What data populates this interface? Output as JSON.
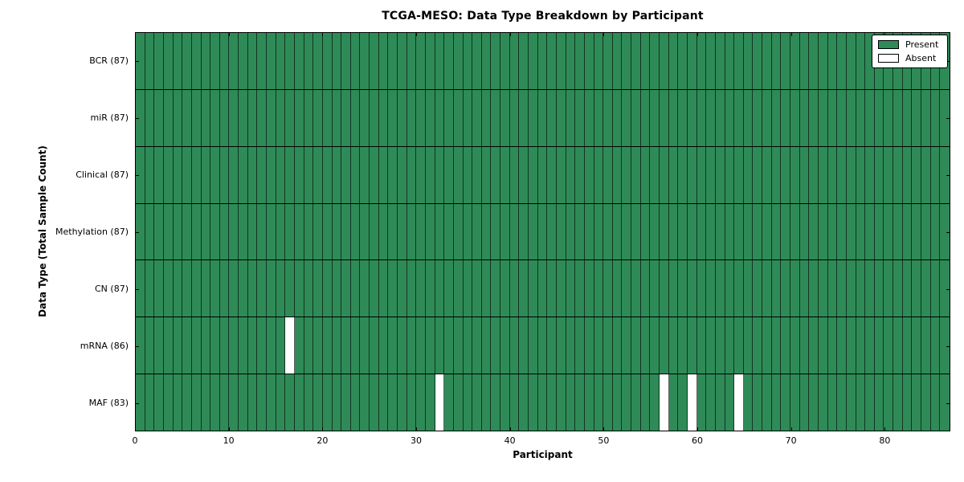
{
  "chart_data": {
    "type": "heatmap",
    "title": "TCGA-MESO: Data Type Breakdown by Participant",
    "xlabel": "Participant",
    "ylabel": "Data Type (Total Sample Count)",
    "xlim": [
      0,
      87
    ],
    "n_participants": 87,
    "x_ticks": [
      0,
      10,
      20,
      30,
      40,
      50,
      60,
      70,
      80
    ],
    "rows": [
      {
        "name": "BCR",
        "label": "BCR (87)",
        "present_count": 87,
        "absent_participants": []
      },
      {
        "name": "miR",
        "label": "miR (87)",
        "present_count": 87,
        "absent_participants": []
      },
      {
        "name": "Clinical",
        "label": "Clinical (87)",
        "present_count": 87,
        "absent_participants": []
      },
      {
        "name": "Methylation",
        "label": "Methylation (87)",
        "present_count": 87,
        "absent_participants": []
      },
      {
        "name": "CN",
        "label": "CN (87)",
        "present_count": 87,
        "absent_participants": []
      },
      {
        "name": "mRNA",
        "label": "mRNA (86)",
        "present_count": 86,
        "absent_participants": [
          16
        ]
      },
      {
        "name": "MAF",
        "label": "MAF (83)",
        "present_count": 83,
        "absent_participants": [
          32,
          56,
          59,
          64
        ]
      }
    ],
    "legend": {
      "position": "upper right",
      "entries": [
        {
          "label": "Present",
          "color": "#2e8b57"
        },
        {
          "label": "Absent",
          "color": "#ffffff"
        }
      ]
    },
    "colors": {
      "present": "#2e8b57",
      "absent": "#ffffff",
      "edge": "#000000"
    },
    "grid": true
  }
}
